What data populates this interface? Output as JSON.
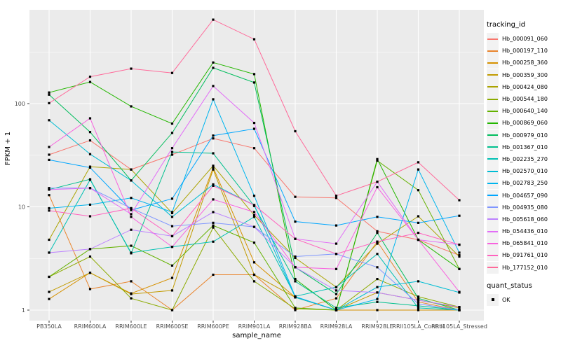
{
  "chart_data": {
    "type": "line",
    "title": "",
    "xlabel": "sample_name",
    "ylabel": "FPKM + 1",
    "y_scale": "log10",
    "y_ticks": [
      1,
      10,
      100
    ],
    "y_minor_ticks": [
      3.162,
      31.62,
      316.2
    ],
    "ylim": [
      0.93,
      810
    ],
    "grid": "on",
    "legend_position": "right",
    "panel_background": "#ebebeb",
    "grid_color": "#ffffff",
    "marker": "black-square",
    "legend_title": "tracking_id",
    "quant_legend": {
      "title": "quant_status",
      "items": [
        {
          "label": "OK"
        }
      ]
    },
    "categories": [
      "PB350LA",
      "RRIM600LA",
      "RRIM600LE",
      "RRIM600SE",
      "RRIM600PE",
      "RRIM901LA",
      "RRIM928BA",
      "RRIM928LA",
      "RRIM928LE",
      "RRII105LA_Control",
      "RRII105LA_Stressed"
    ],
    "series": [
      {
        "name": "Hb_000091_060",
        "color": "#F8766D",
        "values": [
          32,
          44,
          23,
          32,
          46,
          37,
          12.5,
          12.2,
          5.8,
          4.8,
          3.4
        ]
      },
      {
        "name": "Hb_000197_110",
        "color": "#E9842C",
        "values": [
          13,
          1.6,
          1.9,
          1.0,
          2.2,
          2.2,
          1.0,
          1.3,
          4.6,
          1.2,
          1.0
        ]
      },
      {
        "name": "Hb_000258_360",
        "color": "#D69100",
        "values": [
          1.28,
          2.3,
          1.45,
          2.05,
          24,
          2.9,
          1.33,
          1.0,
          1.0,
          1.0,
          1.0
        ]
      },
      {
        "name": "Hb_000359_300",
        "color": "#C29B00",
        "values": [
          1.5,
          2.3,
          1.43,
          1.55,
          23,
          2.2,
          1.33,
          1.0,
          1.48,
          1.25,
          1.05
        ]
      },
      {
        "name": "Hb_000424_080",
        "color": "#ABA300",
        "values": [
          4.8,
          24.5,
          23,
          8.7,
          25,
          8.3,
          3.2,
          1.67,
          4.4,
          8.1,
          3.3
        ]
      },
      {
        "name": "Hb_000544_180",
        "color": "#8CAB00",
        "values": [
          2.1,
          3.3,
          1.3,
          1.0,
          6.3,
          1.9,
          1.03,
          1.0,
          2.0,
          1.35,
          1.07
        ]
      },
      {
        "name": "Hb_000640_140",
        "color": "#64B200",
        "values": [
          2.1,
          3.9,
          4.2,
          2.7,
          6.6,
          4.5,
          1.05,
          1.0,
          28,
          14.5,
          2.5
        ]
      },
      {
        "name": "Hb_000869_060",
        "color": "#24B700",
        "values": [
          128,
          162,
          94,
          64,
          250,
          193,
          2.0,
          1.0,
          29,
          4.8,
          2.5
        ]
      },
      {
        "name": "Hb_000979_010",
        "color": "#00BD5C",
        "values": [
          122,
          53,
          18,
          52,
          222,
          160,
          2.6,
          1.43,
          5.6,
          1.3,
          1.0
        ]
      },
      {
        "name": "Hb_001367_010",
        "color": "#00C08E",
        "values": [
          14.7,
          18.5,
          3.55,
          34,
          33,
          10.2,
          1.9,
          1.05,
          1.2,
          1.1,
          1.0
        ]
      },
      {
        "name": "Hb_002235_270",
        "color": "#00C0B4",
        "values": [
          3.6,
          18.3,
          3.6,
          4.1,
          4.6,
          8.0,
          1.36,
          1.67,
          3.5,
          1.05,
          1.0
        ]
      },
      {
        "name": "Hb_002570_010",
        "color": "#00BDD4",
        "values": [
          69,
          32.4,
          18,
          8.0,
          16.5,
          10.4,
          1.33,
          1.0,
          1.67,
          1.9,
          1.48
        ]
      },
      {
        "name": "Hb_002783_250",
        "color": "#00B5EE",
        "values": [
          9.7,
          10.5,
          12.2,
          8.9,
          110,
          12.8,
          1.35,
          1.0,
          1.28,
          23,
          3.6
        ]
      },
      {
        "name": "Hb_004657_090",
        "color": "#00A6FF",
        "values": [
          28.5,
          24,
          9.3,
          12,
          49,
          57,
          7.2,
          6.6,
          8.0,
          7.0,
          8.2
        ]
      },
      {
        "name": "Hb_004935_080",
        "color": "#7F96FF",
        "values": [
          15.2,
          15.2,
          9.7,
          6.5,
          7.0,
          6.4,
          3.3,
          3.5,
          2.6,
          1.15,
          1.0
        ]
      },
      {
        "name": "Hb_005618_060",
        "color": "#BC81FF",
        "values": [
          3.6,
          3.9,
          6.0,
          5.2,
          8.9,
          6.4,
          2.6,
          1.55,
          1.48,
          1.25,
          1.07
        ]
      },
      {
        "name": "Hb_054436_010",
        "color": "#E26EF7",
        "values": [
          14.7,
          15.2,
          8.5,
          37,
          148,
          65,
          4.9,
          4.4,
          17.5,
          4.8,
          4.3
        ]
      },
      {
        "name": "Hb_065841_010",
        "color": "#F863DF",
        "values": [
          38,
          72,
          8.0,
          4.1,
          11.8,
          8.9,
          2.6,
          2.5,
          15.5,
          4.8,
          1.5
        ]
      },
      {
        "name": "Hb_091761_010",
        "color": "#FF62BF",
        "values": [
          9.2,
          8.1,
          9.7,
          5.2,
          16,
          10.4,
          4.9,
          3.5,
          4.6,
          5.6,
          4.3
        ]
      },
      {
        "name": "Hb_177152_010",
        "color": "#FF6A9A",
        "values": [
          101,
          182,
          218,
          198,
          650,
          420,
          54,
          12.8,
          17.5,
          27,
          11.6
        ]
      }
    ]
  }
}
